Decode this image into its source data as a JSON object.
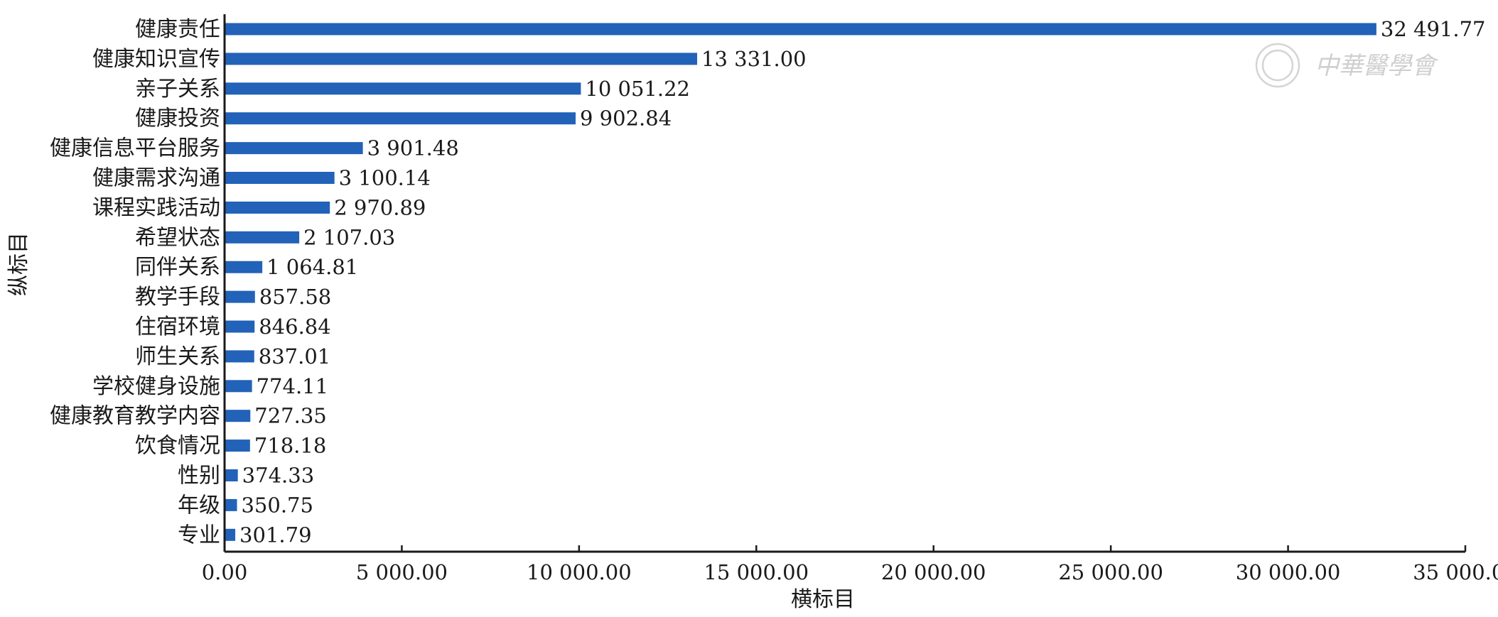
{
  "chart_data": {
    "type": "bar",
    "orientation": "horizontal",
    "xlabel": "横标目",
    "ylabel": "纵标目",
    "xlim": [
      0,
      35000
    ],
    "x_ticks": [
      0,
      5000,
      10000,
      15000,
      20000,
      25000,
      30000,
      35000
    ],
    "x_tick_labels": [
      "0.00",
      "5 000.00",
      "10 000.00",
      "15 000.00",
      "20 000.00",
      "25 000.00",
      "30 000.00",
      "35 000.00"
    ],
    "categories": [
      "健康责任",
      "健康知识宣传",
      "亲子关系",
      "健康投资",
      "健康信息平台服务",
      "健康需求沟通",
      "课程实践活动",
      "希望状态",
      "同伴关系",
      "教学手段",
      "住宿环境",
      "师生关系",
      "学校健身设施",
      "健康教育教学内容",
      "饮食情况",
      "性别",
      "年级",
      "专业"
    ],
    "values": [
      32491.77,
      13331.0,
      10051.22,
      9902.84,
      3901.48,
      3100.14,
      2970.89,
      2107.03,
      1064.81,
      857.58,
      846.84,
      837.01,
      774.11,
      727.35,
      718.18,
      374.33,
      350.75,
      301.79
    ],
    "value_labels": [
      "32 491.77",
      "13 331.00",
      "10 051.22",
      "9 902.84",
      "3 901.48",
      "3 100.14",
      "2 970.89",
      "2 107.03",
      "1 064.81",
      "857.58",
      "846.84",
      "837.01",
      "774.11",
      "727.35",
      "718.18",
      "374.33",
      "350.75",
      "301.79"
    ],
    "bar_color": "#2262b8",
    "grid": false,
    "legend": "none"
  },
  "watermark": {
    "text": "中華醫學會"
  }
}
